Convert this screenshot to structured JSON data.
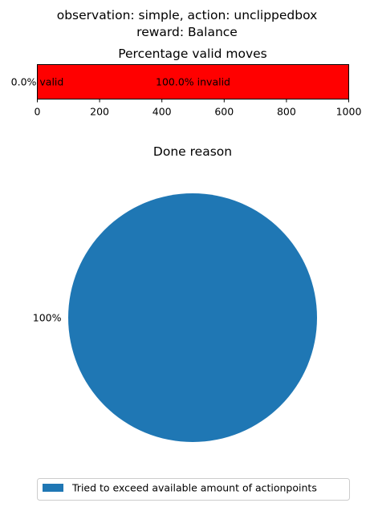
{
  "figure": {
    "title_line1": "observation: simple, action: unclippedbox",
    "title_line2": "reward: Balance"
  },
  "chart_data": [
    {
      "type": "bar",
      "orientation": "horizontal-stacked",
      "title": "Percentage valid moves",
      "xlim": [
        0,
        1000
      ],
      "xticks": [
        0,
        200,
        400,
        600,
        800,
        1000
      ],
      "series": [
        {
          "name": "valid",
          "value": 0,
          "label": "0.0% valid",
          "color": "#008000"
        },
        {
          "name": "invalid",
          "value": 1000,
          "label": "100.0% invalid",
          "color": "#ff0000"
        }
      ]
    },
    {
      "type": "pie",
      "title": "Done reason",
      "slices": [
        {
          "name": "Tried to exceed available amount of actionpoints",
          "value": 100,
          "label": "100%",
          "color": "#1f77b4"
        }
      ],
      "legend_placement": "bottom-center"
    }
  ]
}
